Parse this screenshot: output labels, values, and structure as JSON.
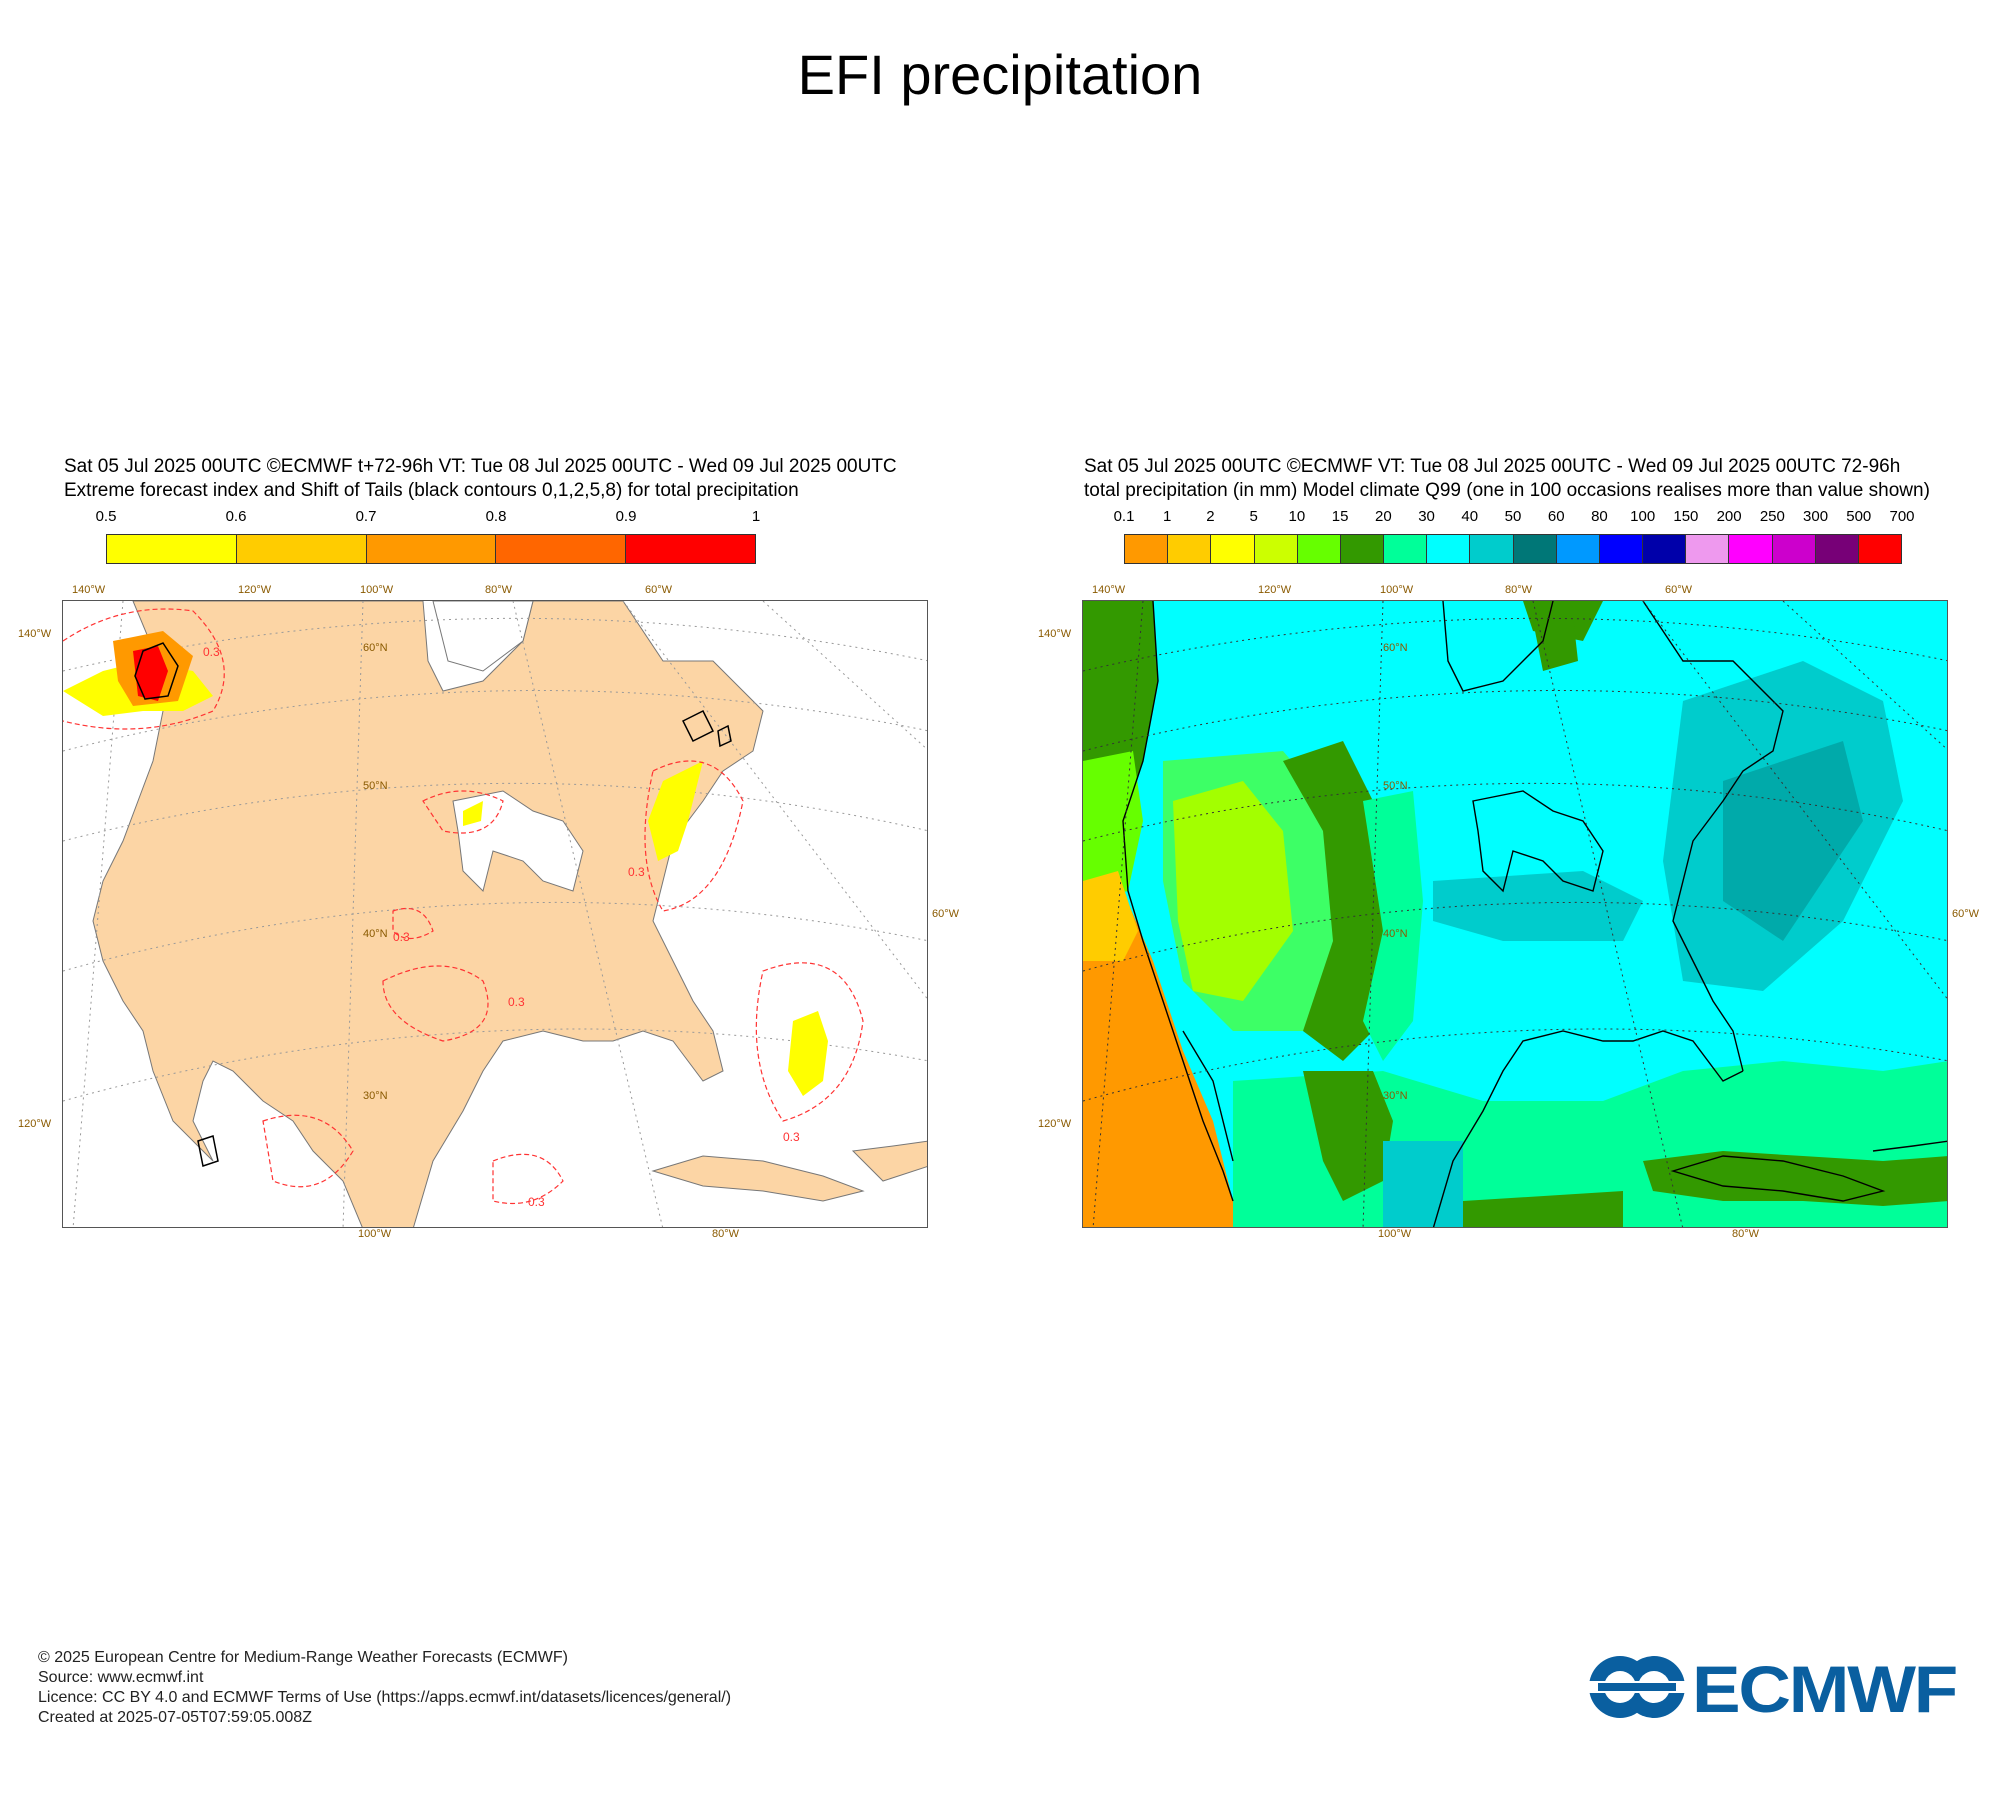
{
  "title": "EFI precipitation",
  "left": {
    "header_line1": "Sat 05 Jul 2025 00UTC ©ECMWF t+72-96h  VT: Tue 08 Jul 2025 00UTC - Wed 09 Jul 2025 00UTC",
    "header_line2": "Extreme forecast index and Shift of Tails (black contours 0,1,2,5,8) for total precipitation",
    "colorbar": {
      "labels": [
        "0.5",
        "0.6",
        "0.7",
        "0.8",
        "0.9",
        "1"
      ],
      "colors": [
        "#ffff00",
        "#ffcc00",
        "#ff9900",
        "#ff6600",
        "#ff0000"
      ]
    },
    "axis_top": [
      "140°W",
      "120°W",
      "100°W",
      "80°W",
      "60°W"
    ],
    "axis_bottom": [
      "100°W",
      "80°W"
    ],
    "axis_left": [
      "140°W",
      "120°W"
    ],
    "axis_right": [
      "60°W"
    ],
    "lat_labels": [
      "60°N",
      "50°N",
      "40°N",
      "30°N"
    ],
    "contour_labels": [
      "0.3",
      "0.3",
      "0.3",
      "0.3",
      "0.3",
      "0.3"
    ],
    "land_color": "#fcd5a5"
  },
  "right": {
    "header_line1": "Sat 05 Jul 2025 00UTC ©ECMWF VT: Tue 08 Jul 2025 00UTC - Wed 09 Jul 2025 00UTC   72-96h",
    "header_line2": "total precipitation (in mm)  Model climate Q99 (one in 100 occasions realises more than value shown)",
    "colorbar": {
      "labels": [
        "0.1",
        "1",
        "2",
        "5",
        "10",
        "15",
        "20",
        "30",
        "40",
        "50",
        "60",
        "80",
        "100",
        "150",
        "200",
        "250",
        "300",
        "500",
        "700"
      ],
      "colors": [
        "#ff9900",
        "#ffcc00",
        "#ffff00",
        "#ccff00",
        "#66ff00",
        "#339900",
        "#00ff99",
        "#00ffff",
        "#00cccc",
        "#007777",
        "#0099ff",
        "#0000ff",
        "#0000aa",
        "#ee99ee",
        "#ff00ff",
        "#cc00cc",
        "#770077",
        "#ff0000"
      ]
    },
    "axis_top": [
      "140°W",
      "120°W",
      "100°W",
      "80°W",
      "60°W"
    ],
    "axis_bottom": [
      "100°W",
      "80°W"
    ],
    "axis_left": [
      "140°W",
      "120°W"
    ],
    "axis_right": [
      "60°W"
    ],
    "lat_labels": [
      "60°N",
      "50°N",
      "40°N",
      "30°N"
    ]
  },
  "footer": {
    "line1": "© 2025 European Centre for Medium-Range Weather Forecasts (ECMWF)",
    "line2": "Source: www.ecmwf.int",
    "line3": "Licence: CC BY 4.0 and ECMWF Terms of Use (https://apps.ecmwf.int/datasets/licences/general/)",
    "line4": "Created at 2025-07-05T07:59:05.008Z"
  },
  "logo": {
    "text": "ECMWF",
    "color": "#0a5fa0"
  }
}
